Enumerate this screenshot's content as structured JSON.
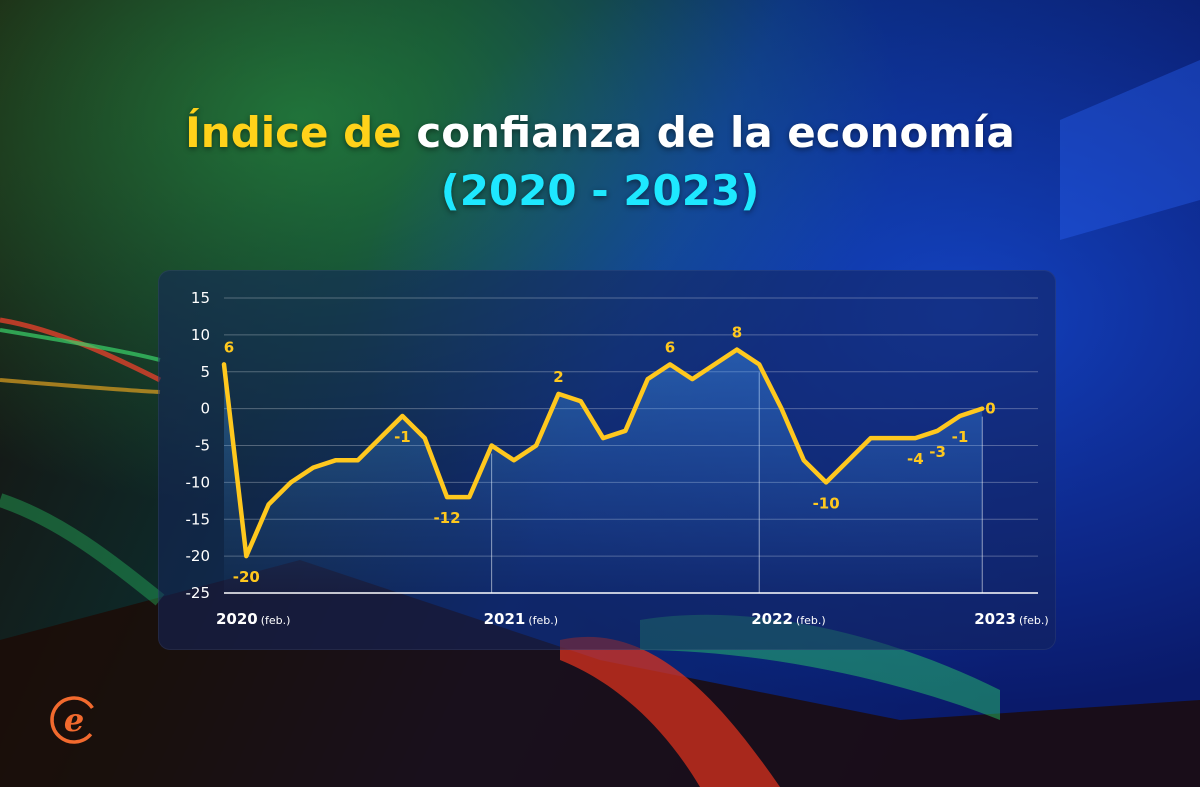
{
  "title": {
    "part_yellow": "Índice de",
    "part_white": "confianza de la economía",
    "subtitle": "(2020 - 2023)"
  },
  "colors": {
    "line": "#ffc81e",
    "title_yellow": "#ffd21a",
    "subtitle_cyan": "#1ee8ff",
    "logo": "#f26a2e"
  },
  "logo_icon": "e-letter-logo-icon",
  "chart_data": {
    "type": "line",
    "ylim": [
      -25,
      15
    ],
    "yticks": [
      15,
      10,
      5,
      0,
      -5,
      -10,
      -15,
      -20,
      -25
    ],
    "xticks": [
      {
        "year": "2020",
        "suffix": "(feb.)",
        "x": 0
      },
      {
        "year": "2021",
        "suffix": "(feb.)",
        "x": 12
      },
      {
        "year": "2022",
        "suffix": "(feb.)",
        "x": 24
      },
      {
        "year": "2023",
        "suffix": "(feb.)",
        "x": 34
      }
    ],
    "x_min": 0,
    "x_max": 36.5,
    "grid": true,
    "series": [
      {
        "values": [
          6,
          -20,
          -13,
          -10,
          -8,
          -7,
          -7,
          -4,
          -1,
          -4,
          -12,
          -12,
          -5,
          -7,
          -5,
          2,
          1,
          -4,
          -3,
          4,
          6,
          4,
          6,
          8,
          6,
          0,
          -7,
          -10,
          -7,
          -4,
          -4,
          -4,
          -3,
          -1,
          0
        ]
      }
    ],
    "data_labels": [
      {
        "index": 0,
        "text": "6",
        "pos": "above"
      },
      {
        "index": 1,
        "text": "-20",
        "pos": "below"
      },
      {
        "index": 8,
        "text": "-1",
        "pos": "below"
      },
      {
        "index": 10,
        "text": "-12",
        "pos": "below"
      },
      {
        "index": 15,
        "text": "2",
        "pos": "above"
      },
      {
        "index": 20,
        "text": "6",
        "pos": "above"
      },
      {
        "index": 23,
        "text": "8",
        "pos": "above"
      },
      {
        "index": 27,
        "text": "-10",
        "pos": "below"
      },
      {
        "index": 31,
        "text": "-4",
        "pos": "below"
      },
      {
        "index": 32,
        "text": "-3",
        "pos": "below"
      },
      {
        "index": 33,
        "text": "-1",
        "pos": "below"
      },
      {
        "index": 34,
        "text": "0",
        "pos": "right"
      }
    ]
  }
}
